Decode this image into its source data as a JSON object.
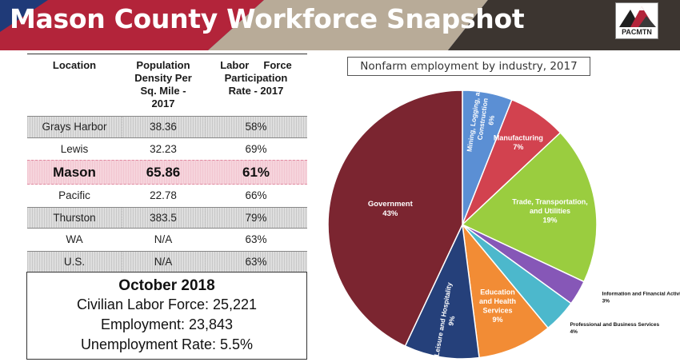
{
  "header": {
    "title": "Mason County Workforce Snapshot",
    "logo_text": "PACMTN",
    "colors": {
      "navy": "#1f3a78",
      "red": "#b3243a",
      "taupe": "#b8ab98",
      "dark": "#3c3530"
    }
  },
  "table": {
    "headers": {
      "location": "Location",
      "density": [
        "Population",
        "Density Per",
        "Sq. Mile -",
        "2017"
      ],
      "labor": [
        "Labor     Force",
        "Participation",
        "Rate - 2017"
      ]
    },
    "rows": [
      {
        "location": "Grays Harbor",
        "density": "38.36",
        "labor": "58%"
      },
      {
        "location": "Lewis",
        "density": "32.23",
        "labor": "69%"
      },
      {
        "location": "Mason",
        "density": "65.86",
        "labor": "61%"
      },
      {
        "location": "Pacific",
        "density": "22.78",
        "labor": "66%"
      },
      {
        "location": "Thurston",
        "density": "383.5",
        "labor": "79%"
      },
      {
        "location": "WA",
        "density": "N/A",
        "labor": "63%"
      },
      {
        "location": "U.S.",
        "density": "N/A",
        "labor": "63%"
      }
    ]
  },
  "stats": {
    "title": "October 2018",
    "lines": [
      "Civilian Labor Force: 25,221",
      "Employment: 23,843",
      "Unemployment Rate: 5.5%"
    ]
  },
  "chart_data": {
    "type": "pie",
    "title": "Nonfarm employment by industry, 2017",
    "slices": [
      {
        "name": [
          "Mining, Logging, and",
          "Construction"
        ],
        "label": "6%",
        "value": 6,
        "color": "#5b8fd4"
      },
      {
        "name": [
          "Manufacturing"
        ],
        "label": "7%",
        "value": 7,
        "color": "#d2424f"
      },
      {
        "name": [
          "Trade, Transportation,",
          "and Utilities"
        ],
        "label": "19%",
        "value": 19,
        "color": "#9acd3f"
      },
      {
        "name": [
          "Information and Financial Activities"
        ],
        "label": "3%",
        "value": 3,
        "color": "#8657b7"
      },
      {
        "name": [
          "Professional and Business Services"
        ],
        "label": "4%",
        "value": 4,
        "color": "#4cb8cc"
      },
      {
        "name": [
          "Education",
          "and Health",
          "Services"
        ],
        "label": "9%",
        "value": 9,
        "color": "#f28c35"
      },
      {
        "name": [
          "Leisure and Hospitality"
        ],
        "label": "9%",
        "value": 9,
        "color": "#25407a"
      },
      {
        "name": [
          "Government"
        ],
        "label": "43%",
        "value": 43,
        "color": "#7b2530"
      }
    ]
  }
}
